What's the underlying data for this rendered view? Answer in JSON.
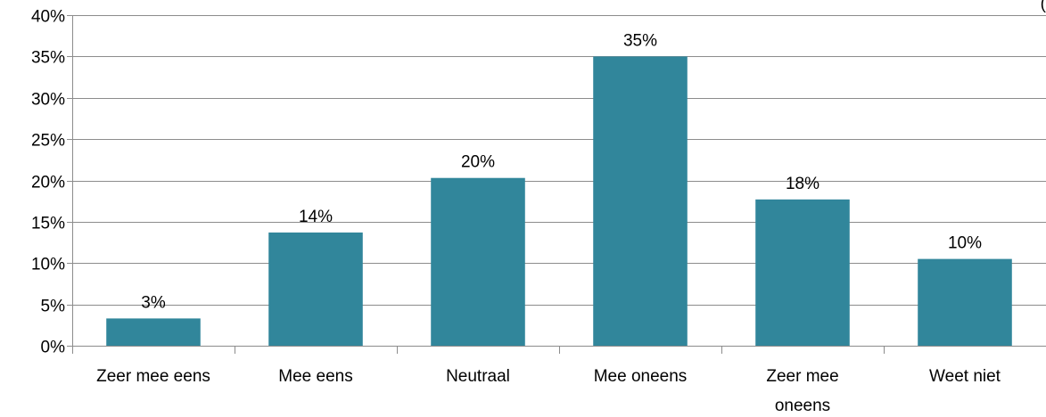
{
  "chart_data": {
    "type": "bar",
    "categories": [
      "Zeer mee eens",
      "Mee eens",
      "Neutraal",
      "Mee oneens",
      "Zeer mee oneens",
      "Weet niet"
    ],
    "category_lines": [
      [
        "Zeer mee eens"
      ],
      [
        "Mee eens"
      ],
      [
        "Neutraal"
      ],
      [
        "Mee oneens"
      ],
      [
        "Zeer mee",
        "oneens"
      ],
      [
        "Weet niet"
      ]
    ],
    "values": [
      3.3,
      13.7,
      20.3,
      35.0,
      17.7,
      10.5
    ],
    "data_labels": [
      "3%",
      "14%",
      "20%",
      "35%",
      "18%",
      "10%"
    ],
    "ylim": [
      0,
      40
    ],
    "yticks": [
      "0%",
      "5%",
      "10%",
      "15%",
      "20%",
      "25%",
      "30%",
      "35%",
      "40%"
    ],
    "ytick_values": [
      0,
      5,
      10,
      15,
      20,
      25,
      30,
      35,
      40
    ],
    "grid": true,
    "bar_color": "#31869b",
    "corner_text": "("
  }
}
